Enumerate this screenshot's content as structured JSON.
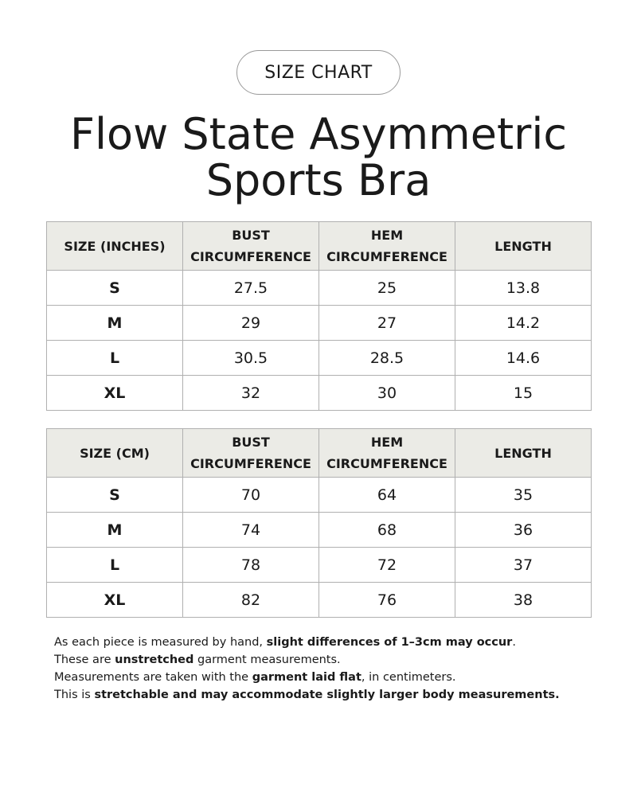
{
  "badge": "SIZE CHART",
  "title_lines": [
    "Flow State Asymmetric",
    "Sports Bra"
  ],
  "tables": [
    {
      "header": [
        "SIZE (INCHES)",
        "BUST CIRCUMFERENCE",
        "HEM CIRCUMFERENCE",
        "LENGTH"
      ],
      "rows": [
        [
          "S",
          "27.5",
          "25",
          "13.8"
        ],
        [
          "M",
          "29",
          "27",
          "14.2"
        ],
        [
          "L",
          "30.5",
          "28.5",
          "14.6"
        ],
        [
          "XL",
          "32",
          "30",
          "15"
        ]
      ]
    },
    {
      "header": [
        "SIZE (CM)",
        "BUST CIRCUMFERENCE",
        "HEM CIRCUMFERENCE",
        "LENGTH"
      ],
      "rows": [
        [
          "S",
          "70",
          "64",
          "35"
        ],
        [
          "M",
          "74",
          "68",
          "36"
        ],
        [
          "L",
          "78",
          "72",
          "37"
        ],
        [
          "XL",
          "82",
          "76",
          "38"
        ]
      ]
    }
  ],
  "notes": [
    [
      {
        "text": "As each piece is measured by hand, ",
        "bold": false
      },
      {
        "text": "slight differences of 1–3cm may occur",
        "bold": true
      },
      {
        "text": ".",
        "bold": false
      }
    ],
    [
      {
        "text": "These are ",
        "bold": false
      },
      {
        "text": "unstretched",
        "bold": true
      },
      {
        "text": " garment measurements.",
        "bold": false
      }
    ],
    [
      {
        "text": "Measurements are taken with the ",
        "bold": false
      },
      {
        "text": "garment laid flat",
        "bold": true
      },
      {
        "text": ", in centimeters.",
        "bold": false
      }
    ],
    [
      {
        "text": "This is ",
        "bold": false
      },
      {
        "text": "stretchable and may accommodate slightly larger body measurements.",
        "bold": true
      }
    ]
  ]
}
